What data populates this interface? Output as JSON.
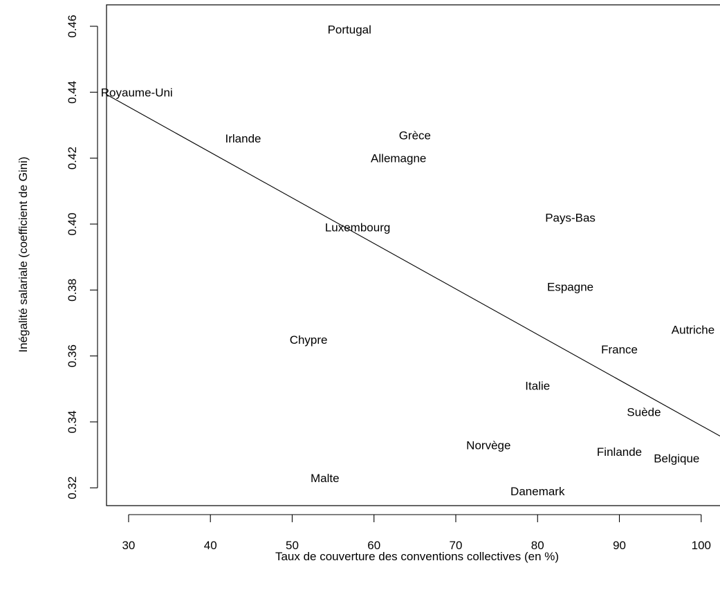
{
  "chart_data": {
    "type": "scatter",
    "title": "",
    "xlabel": "Taux de couverture des conventions collectives (en %)",
    "ylabel": "Inégalité salariale (coefficient de Gini)",
    "xlim": [
      27.3,
      102.3
    ],
    "ylim": [
      0.3146,
      0.4665
    ],
    "x_ticks": [
      30,
      40,
      50,
      60,
      70,
      80,
      90,
      100
    ],
    "y_ticks": [
      0.32,
      0.34,
      0.36,
      0.38,
      0.4,
      0.42,
      0.44,
      0.46
    ],
    "x_tick_labels": [
      "30",
      "40",
      "50",
      "60",
      "70",
      "80",
      "90",
      "100"
    ],
    "y_tick_labels": [
      "0.32",
      "0.34",
      "0.36",
      "0.38",
      "0.40",
      "0.42",
      "0.44",
      "0.46"
    ],
    "marker": "label",
    "grid": false,
    "points": [
      {
        "label": "Portugal",
        "x": 57,
        "y": 0.459
      },
      {
        "label": "Royaume-Uni",
        "x": 31,
        "y": 0.44
      },
      {
        "label": "Irlande",
        "x": 44,
        "y": 0.426
      },
      {
        "label": "Grèce",
        "x": 65,
        "y": 0.427
      },
      {
        "label": "Allemagne",
        "x": 63,
        "y": 0.42
      },
      {
        "label": "Pays-Bas",
        "x": 84,
        "y": 0.402
      },
      {
        "label": "Luxembourg",
        "x": 58,
        "y": 0.399
      },
      {
        "label": "Espagne",
        "x": 84,
        "y": 0.381
      },
      {
        "label": "Chypre",
        "x": 52,
        "y": 0.365
      },
      {
        "label": "Autriche",
        "x": 99,
        "y": 0.368
      },
      {
        "label": "France",
        "x": 90,
        "y": 0.362
      },
      {
        "label": "Italie",
        "x": 80,
        "y": 0.351
      },
      {
        "label": "Suède",
        "x": 93,
        "y": 0.343
      },
      {
        "label": "Norvège",
        "x": 74,
        "y": 0.333
      },
      {
        "label": "Finlande",
        "x": 90,
        "y": 0.331
      },
      {
        "label": "Belgique",
        "x": 97,
        "y": 0.329
      },
      {
        "label": "Malte",
        "x": 54,
        "y": 0.323
      },
      {
        "label": "Danemark",
        "x": 80,
        "y": 0.319
      }
    ],
    "trend_line": {
      "x": [
        27.3,
        102.3
      ],
      "y": [
        0.4393,
        0.3357
      ]
    }
  }
}
